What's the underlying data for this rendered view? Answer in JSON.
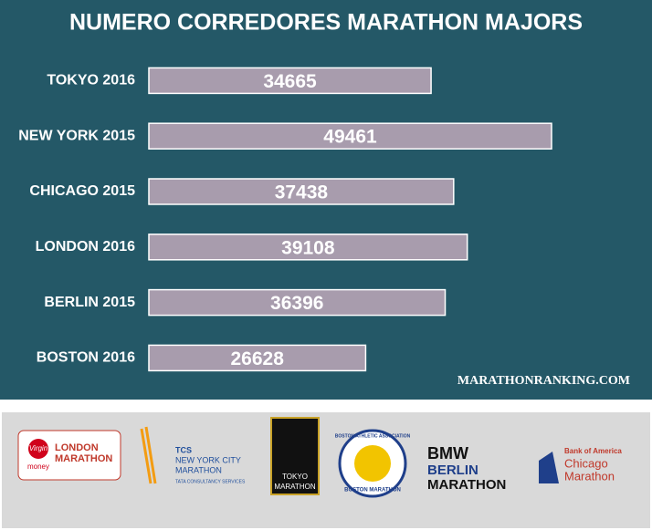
{
  "chart_data": {
    "type": "bar",
    "orientation": "horizontal",
    "title": "NUMERO CORREDORES MARATHON MAJORS",
    "categories": [
      "TOKYO 2016",
      "NEW YORK 2015",
      "CHICAGO 2015",
      "LONDON 2016",
      "BERLIN 2015",
      "BOSTON 2016"
    ],
    "values": [
      34665,
      49461,
      37438,
      39108,
      36396,
      26628
    ],
    "color": "#a89cad",
    "source": "MARATHONRANKING.COM"
  },
  "logos": [
    {
      "lines": [
        "LONDON",
        "MARATHON"
      ],
      "sponsor": "Virgin",
      "sub": "money"
    },
    {
      "lines": [
        "TCS",
        "NEW YORK CITY",
        "MARATHON"
      ],
      "sub": "TATA CONSULTANCY SERVICES"
    },
    {
      "lines": [
        "TOKYO",
        "MARATHON"
      ]
    },
    {
      "lines": [
        "BOSTON ATHLETIC ASSOCIATION"
      ],
      "sub": "BOSTON MARATHON"
    },
    {
      "lines": [
        "BMW",
        "BERLIN",
        "MARATHON"
      ]
    },
    {
      "lines": [
        "Bank of America",
        "Chicago",
        "Marathon"
      ]
    }
  ]
}
